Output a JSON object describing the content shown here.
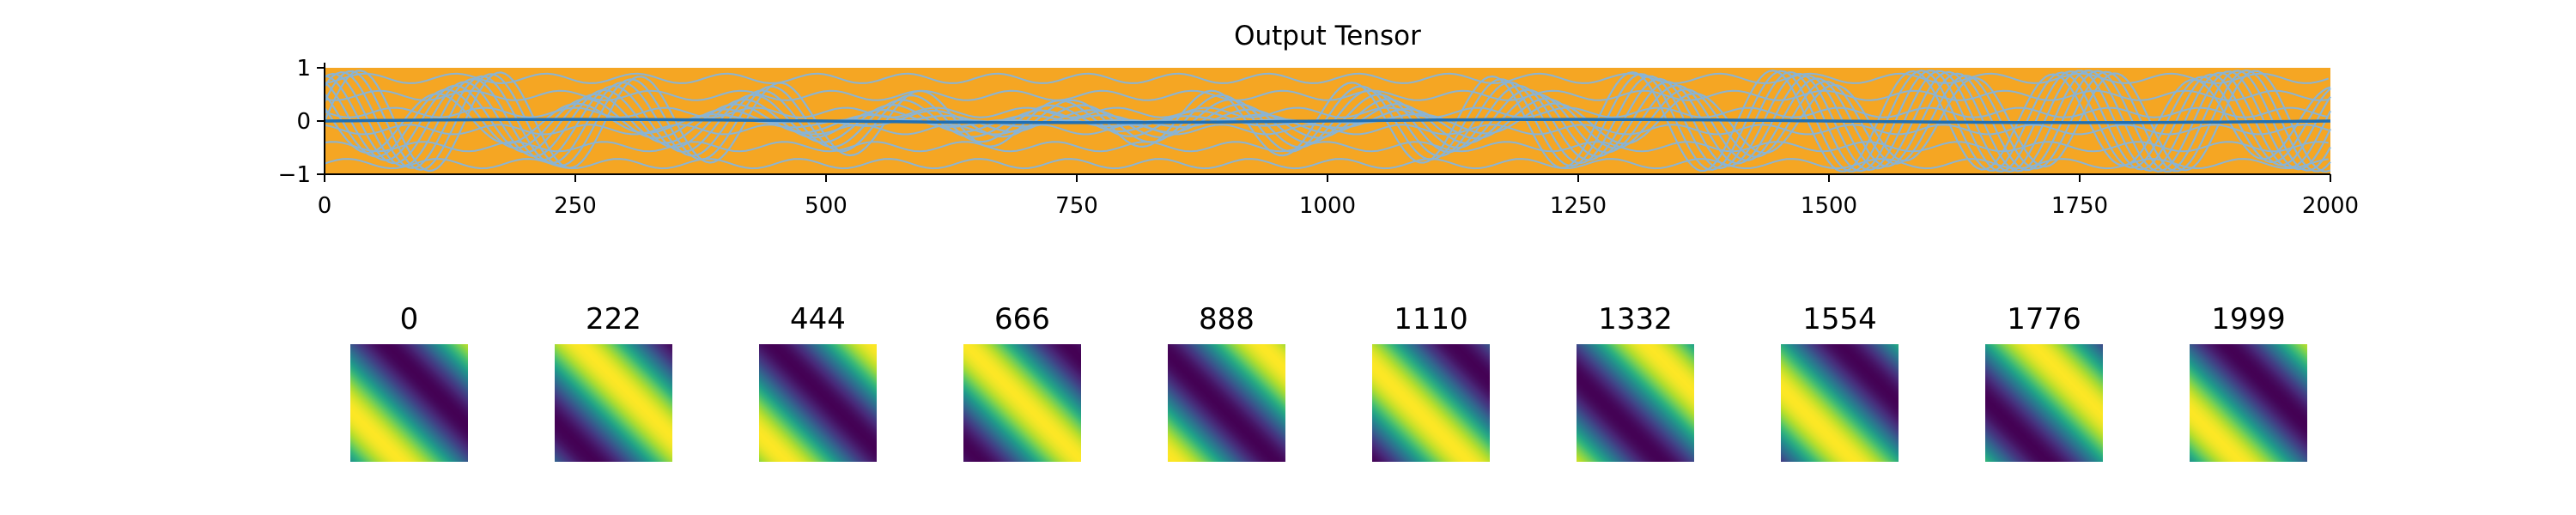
{
  "chart_data": [
    {
      "type": "line",
      "title": "Output Tensor",
      "xlabel": "",
      "ylabel": "",
      "xlim": [
        0,
        2000
      ],
      "ylim": [
        -1,
        1
      ],
      "xticks": [
        0,
        250,
        500,
        750,
        1000,
        1250,
        1500,
        1750,
        2000
      ],
      "yticks": [
        -1,
        0,
        1
      ],
      "ytick_labels": [
        "−1",
        "0",
        "1"
      ],
      "grid": false,
      "series": [
        {
          "role": "envelope",
          "color": "#f5a623",
          "description_values": {
            "min": -1,
            "max": 1
          }
        },
        {
          "role": "signals",
          "color": "#8ab4d4",
          "description_values": {
            "min": -0.95,
            "max": 0.95
          }
        },
        {
          "role": "mean",
          "color": "#1f6fb4",
          "description_values": {
            "value": 0
          }
        }
      ]
    },
    {
      "type": "heatmap",
      "colormap": "viridis",
      "panels": [
        {
          "label": "0",
          "phase": 0.0
        },
        {
          "label": "222",
          "phase": 3.49
        },
        {
          "label": "444",
          "phase": 0.7
        },
        {
          "label": "666",
          "phase": 4.19
        },
        {
          "label": "888",
          "phase": 1.4
        },
        {
          "label": "1110",
          "phase": 4.89
        },
        {
          "label": "1332",
          "phase": 2.09
        },
        {
          "label": "1554",
          "phase": 5.58
        },
        {
          "label": "1776",
          "phase": 2.79
        },
        {
          "label": "1999",
          "phase": 6.28
        }
      ]
    }
  ]
}
